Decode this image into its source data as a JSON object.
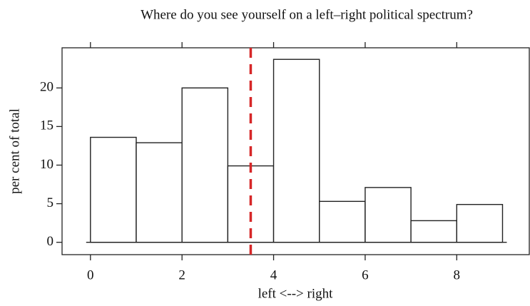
{
  "chart_data": {
    "type": "histogram",
    "title": "Where do you see yourself on a left–right political spectrum?",
    "x_label": "left <--> right",
    "y_label": "per cent of total",
    "bins": [
      0,
      1,
      2,
      3,
      4,
      5,
      6,
      7,
      8,
      9
    ],
    "values": [
      13.6,
      12.9,
      20.0,
      9.9,
      23.7,
      5.3,
      7.1,
      2.8,
      4.9
    ],
    "color": "#ffffff",
    "reference_line": 3.5,
    "reference_color": "#d62728",
    "xlim": [
      -0.62,
      9.6
    ],
    "ylim": [
      -1.6,
      25.2
    ],
    "xticks": [
      0,
      2,
      4,
      6,
      8
    ],
    "yticks": [
      0,
      5,
      10,
      15,
      20
    ]
  }
}
